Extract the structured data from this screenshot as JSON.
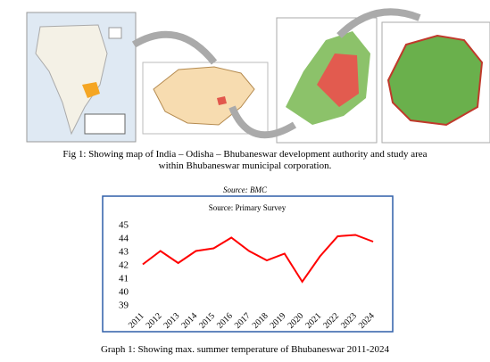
{
  "figure": {
    "caption": "Fig 1: Showing map of India – Odisha – Bhubaneswar development authority and study area within Bhubaneswar municipal corporation.",
    "source": "Source: BMC"
  },
  "chart_data": {
    "type": "line",
    "title": "Source: Primary Survey",
    "categories": [
      "2011",
      "2012",
      "2013",
      "2014",
      "2015",
      "2016",
      "2017",
      "2018",
      "2019",
      "2020",
      "2021",
      "2022",
      "2023",
      "2024"
    ],
    "values": [
      42.1,
      43.1,
      42.2,
      43.1,
      43.3,
      44.1,
      43.1,
      42.4,
      42.9,
      40.8,
      42.7,
      44.2,
      44.3,
      43.8
    ],
    "color": "#ff0000",
    "ylim": [
      39,
      45
    ],
    "yticks": [
      39,
      40,
      41,
      42,
      43,
      44,
      45
    ],
    "grid": false
  },
  "graph_caption": "Graph 1: Showing max. summer temperature of Bhubaneswar 2011-2024"
}
